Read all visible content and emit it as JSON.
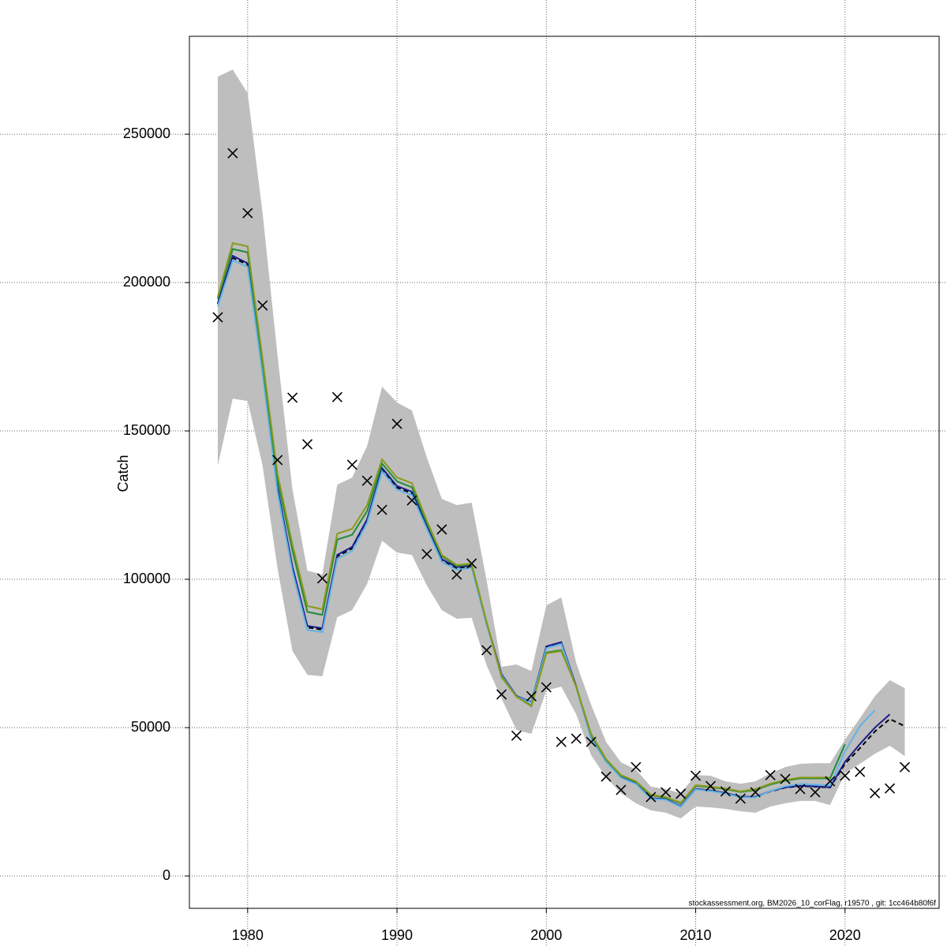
{
  "chart_data": {
    "type": "line",
    "y_label": "Catch",
    "footnote": "stockassessment.org, BM2026_10_corFlag, r19570 , git: 1cc464b80f6f",
    "x": [
      1978,
      1979,
      1980,
      1981,
      1982,
      1983,
      1984,
      1985,
      1986,
      1987,
      1988,
      1989,
      1990,
      1991,
      1992,
      1993,
      1994,
      1995,
      1996,
      1997,
      1998,
      1999,
      2000,
      2001,
      2002,
      2003,
      2004,
      2005,
      2006,
      2007,
      2008,
      2009,
      2010,
      2011,
      2012,
      2013,
      2014,
      2015,
      2016,
      2017,
      2018,
      2019,
      2020,
      2021,
      2022,
      2023,
      2024
    ],
    "band": {
      "color": "#bebebe",
      "upper": [
        269400,
        271800,
        263800,
        223400,
        175500,
        130300,
        102900,
        101600,
        131900,
        134300,
        144900,
        164900,
        159600,
        156900,
        141000,
        127100,
        125000,
        125800,
        99700,
        70500,
        71300,
        69100,
        91200,
        93900,
        71800,
        57700,
        45200,
        38300,
        35900,
        30100,
        29300,
        27900,
        34000,
        33800,
        31900,
        31100,
        31900,
        34600,
        36700,
        37800,
        38000,
        38000,
        46000,
        53200,
        60600,
        66000,
        63300
      ],
      "lower": [
        138300,
        160900,
        160100,
        138300,
        103700,
        75800,
        67800,
        67300,
        87200,
        89600,
        98400,
        113000,
        109000,
        108200,
        97900,
        89600,
        86700,
        87000,
        71000,
        59800,
        49200,
        47900,
        62500,
        63800,
        54500,
        40700,
        33200,
        27900,
        24500,
        22100,
        21300,
        19400,
        23400,
        23100,
        22600,
        21800,
        21300,
        23400,
        24500,
        25300,
        25300,
        23900,
        34600,
        37800,
        41200,
        43900,
        40400
      ]
    },
    "series": [
      {
        "color": "#000000",
        "dash": true,
        "values": [
          192800,
          208300,
          206100,
          170200,
          130300,
          103700,
          83800,
          83000,
          107700,
          110400,
          119700,
          137000,
          130900,
          129000,
          117600,
          106400,
          103700,
          104300,
          85100,
          67800,
          60600,
          58500,
          77100,
          78500,
          63800,
          46500,
          38600,
          33200,
          31100,
          26100,
          25800,
          23400,
          29300,
          28700,
          27900,
          26600,
          26600,
          28500,
          29800,
          30300,
          30100,
          29800,
          37800,
          43100,
          48700,
          52900,
          50500
        ]
      },
      {
        "color": "#1a1a8c",
        "dash": false,
        "values": [
          193000,
          209000,
          206500,
          170800,
          130800,
          104200,
          84300,
          83500,
          108200,
          110900,
          120200,
          137500,
          131400,
          129500,
          118000,
          106800,
          104100,
          104600,
          85400,
          68000,
          60700,
          58600,
          77400,
          78800,
          64000,
          46700,
          38700,
          33300,
          31200,
          26200,
          25900,
          23500,
          29400,
          28800,
          28000,
          26700,
          26700,
          28600,
          29900,
          30400,
          30200,
          29900,
          38500,
          44500,
          50000,
          54500,
          null
        ]
      },
      {
        "color": "#5fb4e6",
        "dash": false,
        "values": [
          192000,
          207500,
          205300,
          169200,
          129300,
          102700,
          82900,
          82200,
          106900,
          109600,
          119000,
          136400,
          130200,
          128400,
          117000,
          105900,
          103200,
          103900,
          84800,
          67600,
          60500,
          58400,
          76800,
          78200,
          63600,
          46400,
          38500,
          33100,
          31000,
          26000,
          25700,
          23300,
          29200,
          28600,
          27800,
          26500,
          26500,
          28600,
          30200,
          31000,
          30800,
          30500,
          42000,
          50500,
          55900,
          null,
          null
        ]
      },
      {
        "color": "#1f8c3a",
        "dash": false,
        "values": [
          194500,
          211300,
          210200,
          172500,
          133600,
          109700,
          89000,
          88000,
          113400,
          115000,
          123000,
          139000,
          133000,
          131000,
          119000,
          107800,
          104500,
          105000,
          85500,
          67200,
          60400,
          57400,
          75300,
          76100,
          63800,
          47600,
          39200,
          33800,
          31700,
          27200,
          26400,
          24500,
          30400,
          29900,
          29300,
          28300,
          29000,
          30800,
          32100,
          32900,
          32900,
          32900,
          44400,
          null,
          null,
          null,
          null
        ]
      },
      {
        "color": "#8a9a1a",
        "dash": false,
        "values": [
          195200,
          213300,
          212200,
          174200,
          135600,
          111700,
          91000,
          89900,
          115400,
          117000,
          125000,
          140400,
          134300,
          132400,
          119700,
          108200,
          104800,
          105300,
          85600,
          67000,
          60400,
          57200,
          75000,
          75800,
          63800,
          47900,
          39400,
          34000,
          31900,
          27400,
          26600,
          24700,
          30600,
          30100,
          29500,
          28500,
          29300,
          31100,
          32400,
          33200,
          33200,
          33200,
          null,
          null,
          null,
          null,
          null
        ]
      }
    ],
    "observed": {
      "color": "#000000",
      "values": [
        188300,
        243600,
        223400,
        192300,
        140200,
        161200,
        145500,
        100300,
        161400,
        138600,
        133200,
        123400,
        152400,
        126600,
        108500,
        116800,
        101600,
        105300,
        76100,
        61200,
        47300,
        60600,
        63600,
        45200,
        46300,
        45200,
        33500,
        29000,
        36700,
        26600,
        28200,
        27700,
        33800,
        30300,
        28500,
        26100,
        28200,
        34000,
        32700,
        29300,
        28200,
        31900,
        33800,
        35100,
        27900,
        29500,
        36700
      ]
    },
    "xlim": [
      1976.1,
      2026.3
    ],
    "ylim": [
      -10900,
      283000
    ],
    "xticks": [
      1980,
      1990,
      2000,
      2010,
      2020
    ],
    "yticks": [
      0,
      50000,
      100000,
      150000,
      200000,
      250000
    ],
    "grid": true
  }
}
